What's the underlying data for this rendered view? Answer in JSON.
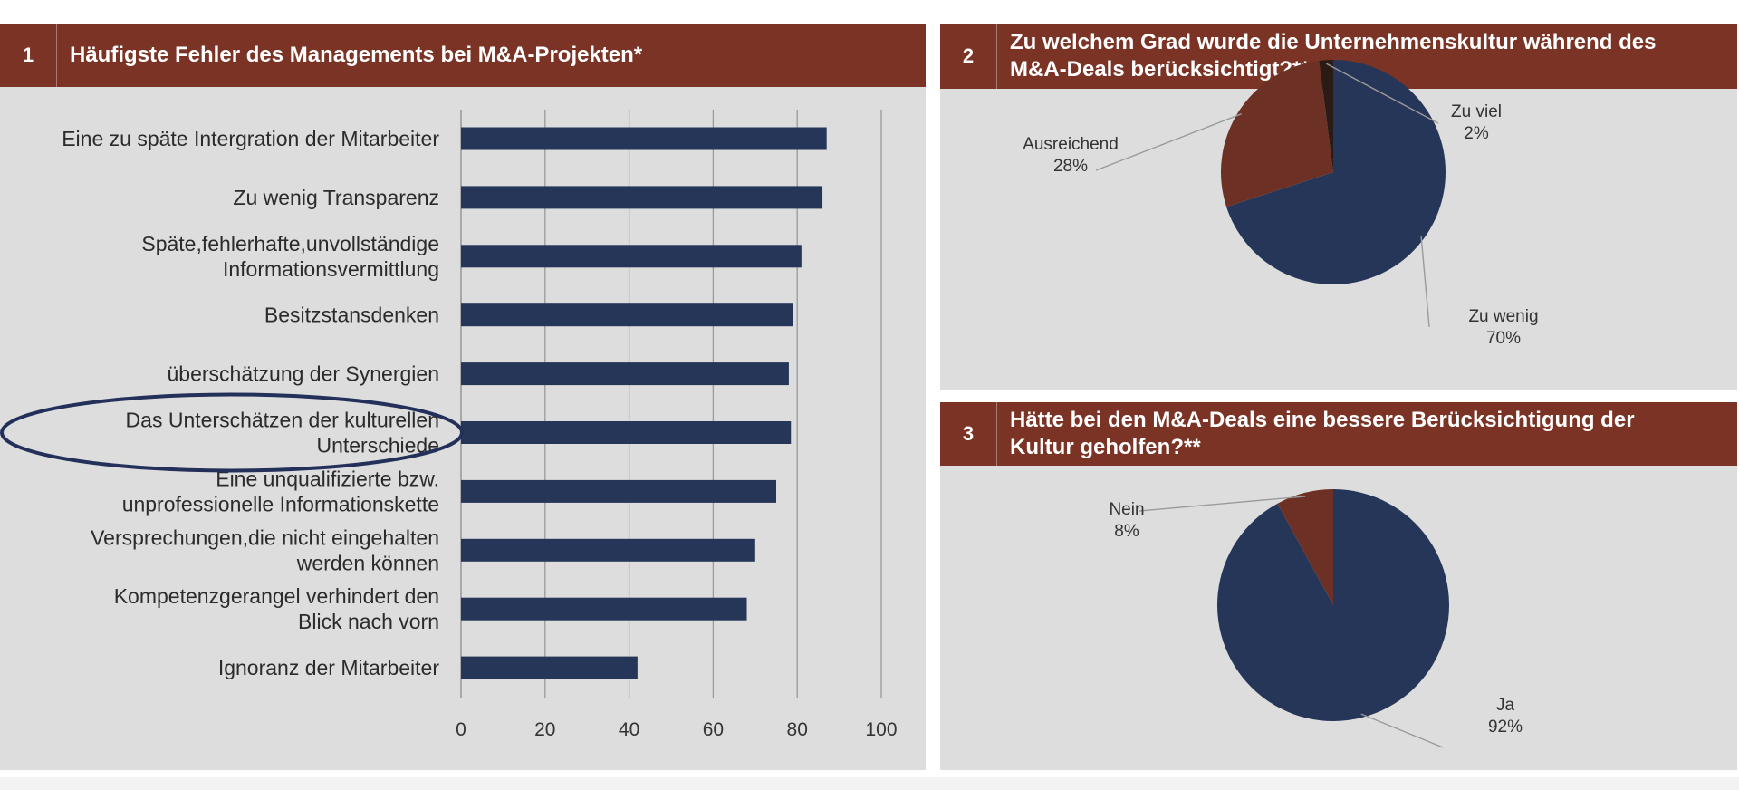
{
  "panel1": {
    "number": "1",
    "title": "Häufigste Fehler des Managements bei M&A-Projekten*",
    "highlighted_category_index": 5
  },
  "panel2": {
    "number": "2",
    "title_line1": "Zu welchem Grad wurde die Unternehmenskultur während des",
    "title_line2": "M&A-Deals berücksichtigt?**"
  },
  "panel3": {
    "number": "3",
    "title_line1": "Hätte bei den M&A-Deals eine bessere Berücksichtigung der",
    "title_line2": "Kultur geholfen?**"
  },
  "colors": {
    "header_bg": "#7a3324",
    "panel_bg": "#dddddd",
    "bar": "#253659",
    "pie_blue": "#253659",
    "pie_red": "#6d3024",
    "pie_dark": "#2a1b17",
    "highlight_ellipse": "#22305a"
  },
  "chart_data": [
    {
      "type": "bar",
      "orientation": "horizontal",
      "categories": [
        [
          "Eine zu späte Intergration der Mitarbeiter"
        ],
        [
          "Zu wenig Transparenz"
        ],
        [
          "Späte,fehlerhafte,unvollständige",
          "Informationsvermittlung"
        ],
        [
          "Besitzstansdenken"
        ],
        [
          "überschätzung der Synergien"
        ],
        [
          "Das Unterschätzen der kulturellen",
          "Unterschiede"
        ],
        [
          "Eine unqualifizierte bzw.",
          "unprofessionelle Informationskette"
        ],
        [
          "Versprechungen,die nicht eingehalten",
          "werden können"
        ],
        [
          "Kompetenzgerangel verhindert den",
          "Blick nach vorn"
        ],
        [
          "Ignoranz der Mitarbeiter"
        ]
      ],
      "values": [
        87,
        86,
        81,
        79,
        78,
        78.5,
        75,
        70,
        68,
        42
      ],
      "xlim": [
        0,
        100
      ],
      "xticks": [
        0,
        20,
        40,
        60,
        80,
        100
      ],
      "grid": "vertical"
    },
    {
      "type": "pie",
      "slices": [
        {
          "label": "Zu wenig",
          "value": 70,
          "pct_label": "70%",
          "color": "#253659"
        },
        {
          "label": "Ausreichend",
          "value": 28,
          "pct_label": "28%",
          "color": "#6d3024"
        },
        {
          "label": "Zu viel",
          "value": 2,
          "pct_label": "2%",
          "color": "#2a1b17"
        }
      ]
    },
    {
      "type": "pie",
      "slices": [
        {
          "label": "Ja",
          "value": 92,
          "pct_label": "92%",
          "color": "#253659"
        },
        {
          "label": "Nein",
          "value": 8,
          "pct_label": "8%",
          "color": "#6d3024"
        }
      ]
    }
  ]
}
